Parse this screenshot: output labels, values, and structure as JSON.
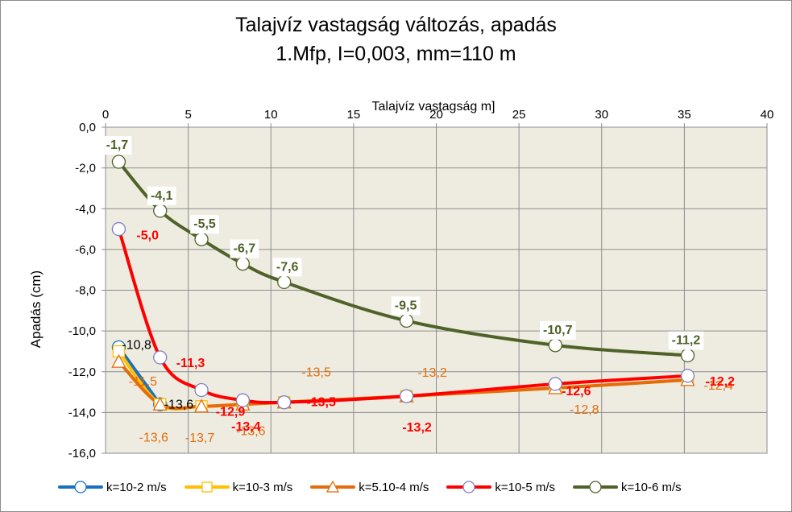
{
  "chart_data": {
    "type": "line",
    "title": [
      "Talajvíz vastagság változás, apadás",
      "1.Mfp, I=0,003, mm=110 m"
    ],
    "xlabel": "Talajvíz vastagság m]",
    "ylabel": "Apadás  (cm)",
    "xlim": [
      0,
      40
    ],
    "ylim": [
      -16,
      0
    ],
    "x_ticks": [
      "0",
      "5",
      "10",
      "15",
      "20",
      "25",
      "30",
      "35",
      "40"
    ],
    "y_ticks": [
      "0,0",
      "-2,0",
      "-4,0",
      "-6,0",
      "-8,0",
      "-10,0",
      "-12,0",
      "-14,0",
      "-16,0"
    ],
    "x_axis_position": "top",
    "grid": true,
    "plot_background": "#eeece1",
    "legend_position": "bottom",
    "series": [
      {
        "name": "k=10-2 m/s",
        "color": "#1a6fc0",
        "marker": "circle",
        "points": [
          [
            0.8,
            -10.8
          ],
          [
            3.3,
            -13.6
          ]
        ],
        "labels": [
          "-10,8",
          "-13,6"
        ],
        "label_colors": [
          "#000000",
          "#000000"
        ]
      },
      {
        "name": "k=10-3 m/s",
        "color": "#ffc000",
        "marker": "square",
        "points": [
          [
            0.8,
            -11.0
          ],
          [
            3.3,
            -13.6
          ],
          [
            5.8,
            -13.7
          ],
          [
            8.3,
            -13.6
          ],
          [
            10.8,
            -13.5
          ],
          [
            18.2,
            -13.2
          ],
          [
            27.2,
            -12.8
          ],
          [
            35.2,
            -12.4
          ]
        ],
        "labels": [],
        "label_colors": []
      },
      {
        "name": "k=5.10-4 m/s",
        "color": "#e46c0a",
        "marker": "triangle",
        "points": [
          [
            0.8,
            -11.5
          ],
          [
            3.3,
            -13.6
          ],
          [
            5.8,
            -13.7
          ],
          [
            8.3,
            -13.6
          ],
          [
            10.8,
            -13.5
          ],
          [
            18.2,
            -13.2
          ],
          [
            27.2,
            -12.8
          ],
          [
            35.2,
            -12.4
          ]
        ],
        "labels": [
          "-11,5",
          "-13,6",
          "-13,7",
          "-13,6",
          "-13,5",
          "-13,2",
          "-12,8",
          "-12,4"
        ],
        "label_colors": [
          "#e46c0a",
          "#e46c0a",
          "#e46c0a",
          "#e46c0a",
          "#e46c0a",
          "#e46c0a",
          "#e46c0a",
          "#e46c0a"
        ]
      },
      {
        "name": "k=10-5 m/s",
        "color": "#ff0000",
        "marker": "circle",
        "points": [
          [
            0.8,
            -5.0
          ],
          [
            3.3,
            -11.3
          ],
          [
            5.8,
            -12.9
          ],
          [
            8.3,
            -13.4
          ],
          [
            10.8,
            -13.5
          ],
          [
            18.2,
            -13.2
          ],
          [
            27.2,
            -12.6
          ],
          [
            35.2,
            -12.2
          ]
        ],
        "labels": [
          "-5,0",
          "-11,3",
          "-12,9",
          "-13,4",
          "-13,5",
          "-13,2",
          "-12,6",
          "-12,2"
        ],
        "label_colors": [
          "#ff0000",
          "#ff0000",
          "#ff0000",
          "#ff0000",
          "#ff0000",
          "#ff0000",
          "#ff0000",
          "#ff0000"
        ]
      },
      {
        "name": "k=10-6 m/s",
        "color": "#4f6228",
        "marker": "circle",
        "points": [
          [
            0.8,
            -1.7
          ],
          [
            3.3,
            -4.1
          ],
          [
            5.8,
            -5.5
          ],
          [
            8.3,
            -6.7
          ],
          [
            10.8,
            -7.6
          ],
          [
            18.2,
            -9.5
          ],
          [
            27.2,
            -10.7
          ],
          [
            35.2,
            -11.2
          ]
        ],
        "labels": [
          "-1,7",
          "-4,1",
          "-5,5",
          "-6,7",
          "-7,6",
          "-9,5",
          "-10,7",
          "-11,2"
        ],
        "label_colors": [
          "#4f6228",
          "#4f6228",
          "#4f6228",
          "#4f6228",
          "#4f6228",
          "#4f6228",
          "#4f6228",
          "#4f6228"
        ]
      }
    ]
  }
}
